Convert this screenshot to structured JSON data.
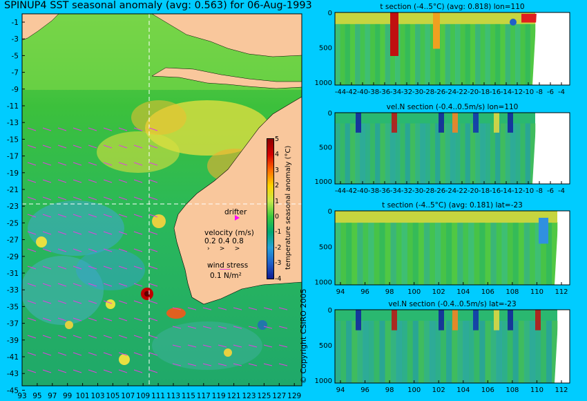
{
  "map": {
    "title": "SPINUP4 SST seasonal anomaly (avg: 0.563) for 06-Aug-1993",
    "lat_ticks": [
      "-1",
      "-3",
      "-5",
      "-7",
      "-9",
      "-11",
      "-13",
      "-15",
      "-17",
      "-19",
      "-21",
      "-23",
      "-25",
      "-27",
      "-29",
      "-31",
      "-33",
      "-35",
      "-37",
      "-39",
      "-41",
      "-43",
      "-45"
    ],
    "lon_ticks": [
      "93",
      "95",
      "97",
      "99",
      "101",
      "103",
      "105",
      "107",
      "109",
      "111",
      "113",
      "115",
      "117",
      "119",
      "121",
      "123",
      "125",
      "127",
      "129"
    ],
    "colorbar": {
      "label": "temperature seasonal anomaly (°C)",
      "ticks": [
        "5",
        "4",
        "3",
        "2",
        "1",
        "0",
        "-1",
        "-2",
        "-3",
        "-4"
      ],
      "colors": [
        "#8b0000",
        "#d40000",
        "#ff6a00",
        "#ffd200",
        "#c8e84a",
        "#3cc83c",
        "#00a870",
        "#26a0d8",
        "#2060c8",
        "#101a90"
      ]
    },
    "legend": {
      "drifter": "drifter",
      "velocity_label": "velocity (m/s)",
      "velocity_scale": "0.2 0.4 0.8",
      "wind_label": "wind stress",
      "wind_scale": "0.1 N/m²"
    },
    "copyright": "© Copyright CSIRO 2005",
    "land_color": "#f9c79c",
    "vector_color": "#e040e0"
  },
  "sections": [
    {
      "title": "t section (-4..5°C) (avg: 0.818) lon=110",
      "xticks": [
        "-44",
        "-42",
        "-40",
        "-38",
        "-36",
        "-34",
        "-32",
        "-30",
        "-28",
        "-26",
        "-24",
        "-22",
        "-20",
        "-18",
        "-16",
        "-14",
        "-12",
        "-10",
        "-8",
        "-6",
        "-4"
      ],
      "yticks": [
        "0",
        "500",
        "1000"
      ]
    },
    {
      "title": "vel.N section (-0.4..0.5m/s) lon=110",
      "xticks": [
        "-44",
        "-42",
        "-40",
        "-38",
        "-36",
        "-34",
        "-32",
        "-30",
        "-28",
        "-26",
        "-24",
        "-22",
        "-20",
        "-18",
        "-16",
        "-14",
        "-12",
        "-10",
        "-8",
        "-6",
        "-4"
      ],
      "yticks": [
        "0",
        "500",
        "1000"
      ]
    },
    {
      "title": "t section (-4..5°C) (avg: 0.181) lat=-23",
      "xticks": [
        "94",
        "96",
        "98",
        "100",
        "102",
        "104",
        "106",
        "108",
        "110",
        "112"
      ],
      "yticks": [
        "0",
        "500",
        "1000"
      ]
    },
    {
      "title": "vel.N section (-0.4..0.5m/s) lat=-23",
      "xticks": [
        "94",
        "96",
        "98",
        "100",
        "102",
        "104",
        "106",
        "108",
        "110",
        "112"
      ],
      "yticks": [
        "0",
        "500",
        "1000"
      ]
    }
  ]
}
